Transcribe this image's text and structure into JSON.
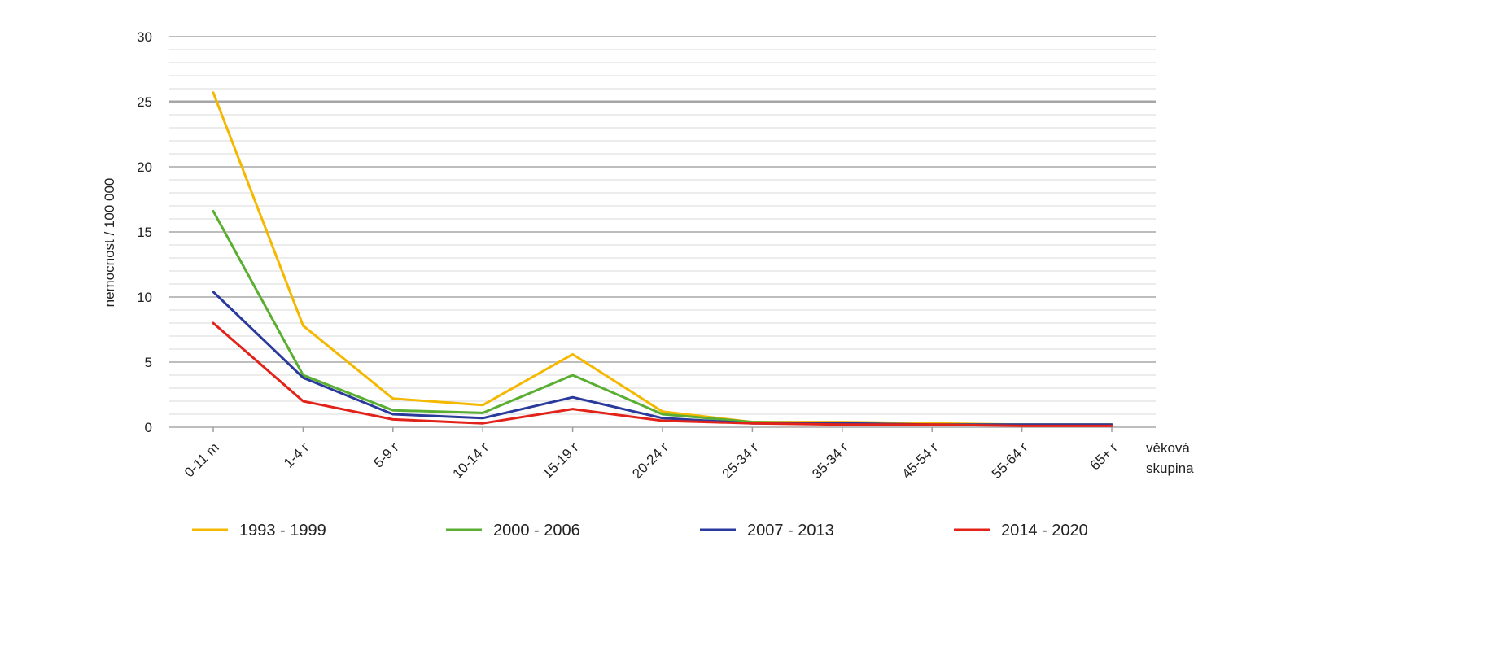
{
  "chart_data": {
    "type": "line",
    "ylabel": "nemocnost / 100 000",
    "xlabel": "věková skupina",
    "xlabel_lines": [
      "věková",
      "skupina"
    ],
    "ylim": [
      0,
      30
    ],
    "yticks": [
      0,
      5,
      10,
      15,
      20,
      25,
      30
    ],
    "grid": true,
    "legend": "bottom",
    "categories": [
      "0-11 m",
      "1-4 r",
      "5-9 r",
      "10-14 r",
      "15-19 r",
      "20-24 r",
      "25-34 r",
      "35-34 r",
      "45-54 r",
      "55-64 r",
      "65+ r"
    ],
    "series": [
      {
        "name": "1993 - 1999",
        "color": "#f5b800",
        "values": [
          25.7,
          7.8,
          2.2,
          1.7,
          5.6,
          1.2,
          0.4,
          0.4,
          0.3,
          0.2,
          0.2
        ]
      },
      {
        "name": "2000 - 2006",
        "color": "#5aae32",
        "values": [
          16.6,
          4.0,
          1.3,
          1.1,
          4.0,
          1.0,
          0.4,
          0.3,
          0.2,
          0.2,
          0.2
        ]
      },
      {
        "name": "2007 - 2013",
        "color": "#2a3a9c",
        "values": [
          10.4,
          3.8,
          1.0,
          0.7,
          2.3,
          0.7,
          0.3,
          0.3,
          0.2,
          0.2,
          0.2
        ]
      },
      {
        "name": "2014 - 2020",
        "color": "#e2231a",
        "values": [
          8.0,
          2.0,
          0.6,
          0.3,
          1.4,
          0.5,
          0.3,
          0.2,
          0.2,
          0.1,
          0.1
        ]
      }
    ]
  }
}
